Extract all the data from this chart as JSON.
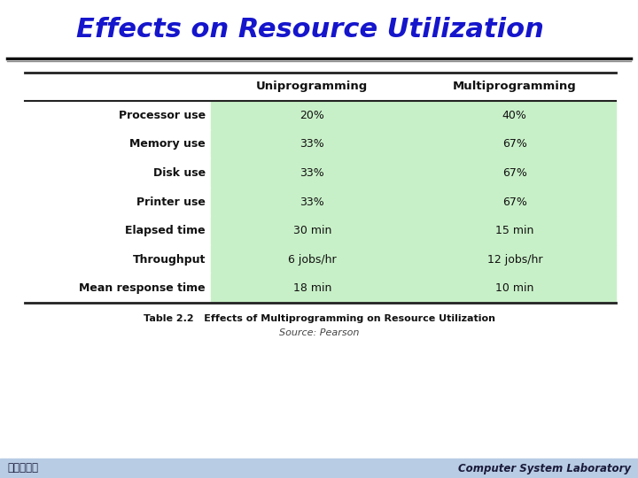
{
  "title": "Effects on Resource Utilization",
  "title_color": "#1515cc",
  "title_fontsize": 22,
  "table_caption": "Table 2.2   Effects of Multiprogramming on Resource Utilization",
  "table_source": "Source: Pearson",
  "col_headers": [
    "",
    "Uniprogramming",
    "Multiprogramming"
  ],
  "rows": [
    [
      "Processor use",
      "20%",
      "40%"
    ],
    [
      "Memory use",
      "33%",
      "67%"
    ],
    [
      "Disk use",
      "33%",
      "67%"
    ],
    [
      "Printer use",
      "33%",
      "67%"
    ],
    [
      "Elapsed time",
      "30 min",
      "15 min"
    ],
    [
      "Throughput",
      "6 jobs/hr",
      "12 jobs/hr"
    ],
    [
      "Mean response time",
      "18 min",
      "10 min"
    ]
  ],
  "row_bg_green": "#c8f0c8",
  "row_bg_white": "#ffffff",
  "border_color": "#222222",
  "footer_bg": "#b8cce4",
  "footer_text_color": "#1a1a3a",
  "footer_left": "高麗大學校",
  "footer_right": "Computer System Laboratory",
  "bg_color": "#f0f0f0",
  "slide_bg": "#ffffff"
}
